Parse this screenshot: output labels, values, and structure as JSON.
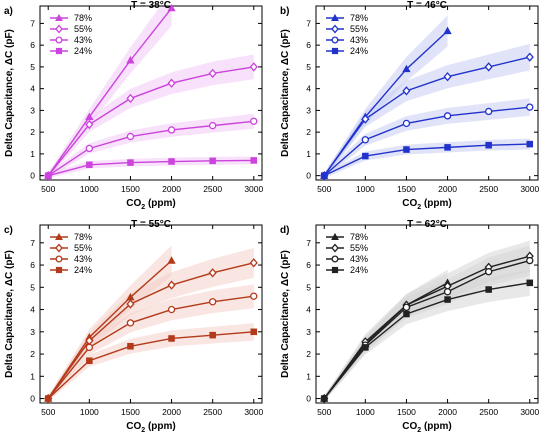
{
  "chart_data": [
    {
      "type": "line",
      "panel_label": "a)",
      "title": "T = 38°C",
      "xlabel_main": "CO",
      "xlabel_sub": "2",
      "xlabel_rest": " (ppm)",
      "ylabel": "Delta Capacitance, ΔC (pF)",
      "xlim": [
        400,
        3100
      ],
      "ylim": [
        -0.2,
        7.8
      ],
      "xticks": [
        500,
        1000,
        1500,
        2000,
        2500,
        3000
      ],
      "yticks": [
        0,
        1,
        2,
        3,
        4,
        5,
        6,
        7
      ],
      "color": "#cc44dd",
      "band_color": "#f3c8f6",
      "legend_position": "top-left",
      "series": [
        {
          "name": "78%",
          "marker": "triangle",
          "x": [
            500,
            1000,
            1500,
            2000
          ],
          "values": [
            0,
            2.7,
            5.3,
            7.7
          ]
        },
        {
          "name": "55%",
          "marker": "diamond",
          "x": [
            500,
            1000,
            1500,
            2000,
            2500,
            3000
          ],
          "values": [
            0,
            2.35,
            3.55,
            4.25,
            4.7,
            5.0
          ]
        },
        {
          "name": "43%",
          "marker": "circle",
          "x": [
            500,
            1000,
            1500,
            2000,
            2500,
            3000
          ],
          "values": [
            0,
            1.25,
            1.8,
            2.1,
            2.3,
            2.5
          ]
        },
        {
          "name": "24%",
          "marker": "square",
          "x": [
            500,
            1000,
            1500,
            2000,
            2500,
            3000
          ],
          "values": [
            0,
            0.5,
            0.6,
            0.65,
            0.68,
            0.7
          ]
        }
      ]
    },
    {
      "type": "line",
      "panel_label": "b)",
      "title": "T = 46°C",
      "xlabel_main": "CO",
      "xlabel_sub": "2",
      "xlabel_rest": " (ppm)",
      "ylabel": "Delta Capacitance, ΔC (pF)",
      "xlim": [
        400,
        3100
      ],
      "ylim": [
        -0.2,
        7.8
      ],
      "xticks": [
        500,
        1000,
        1500,
        2000,
        2500,
        3000
      ],
      "yticks": [
        0,
        1,
        2,
        3,
        4,
        5,
        6,
        7
      ],
      "color": "#2233cc",
      "band_color": "#c9cdf3",
      "legend_position": "top-left",
      "series": [
        {
          "name": "78%",
          "marker": "triangle",
          "x": [
            500,
            1000,
            1500,
            2000
          ],
          "values": [
            0,
            2.7,
            4.9,
            6.65
          ]
        },
        {
          "name": "55%",
          "marker": "diamond",
          "x": [
            500,
            1000,
            1500,
            2000,
            2500,
            3000
          ],
          "values": [
            0,
            2.6,
            3.9,
            4.55,
            5.0,
            5.45
          ]
        },
        {
          "name": "43%",
          "marker": "circle",
          "x": [
            500,
            1000,
            1500,
            2000,
            2500,
            3000
          ],
          "values": [
            0,
            1.65,
            2.4,
            2.75,
            2.95,
            3.15
          ]
        },
        {
          "name": "24%",
          "marker": "square",
          "x": [
            500,
            1000,
            1500,
            2000,
            2500,
            3000
          ],
          "values": [
            0,
            0.9,
            1.2,
            1.3,
            1.4,
            1.45
          ]
        }
      ]
    },
    {
      "type": "line",
      "panel_label": "c)",
      "title": "T = 55°C",
      "xlabel_main": "CO",
      "xlabel_sub": "2",
      "xlabel_rest": " (ppm)",
      "ylabel": "Delta Capacitance, ΔC (pF)",
      "xlim": [
        400,
        3100
      ],
      "ylim": [
        -0.2,
        7.8
      ],
      "xticks": [
        500,
        1000,
        1500,
        2000,
        2500,
        3000
      ],
      "yticks": [
        0,
        1,
        2,
        3,
        4,
        5,
        6,
        7
      ],
      "color": "#b33a1a",
      "band_color": "#f4cfc9",
      "legend_position": "top-left",
      "series": [
        {
          "name": "78%",
          "marker": "triangle",
          "x": [
            500,
            1000,
            1500,
            2000
          ],
          "values": [
            0,
            2.75,
            4.55,
            6.2
          ]
        },
        {
          "name": "55%",
          "marker": "diamond",
          "x": [
            500,
            1000,
            1500,
            2000,
            2500,
            3000
          ],
          "values": [
            0,
            2.6,
            4.25,
            5.1,
            5.65,
            6.1
          ]
        },
        {
          "name": "43%",
          "marker": "circle",
          "x": [
            500,
            1000,
            1500,
            2000,
            2500,
            3000
          ],
          "values": [
            0,
            2.3,
            3.4,
            4.0,
            4.35,
            4.6
          ]
        },
        {
          "name": "24%",
          "marker": "square",
          "x": [
            500,
            1000,
            1500,
            2000,
            2500,
            3000
          ],
          "values": [
            0,
            1.7,
            2.35,
            2.7,
            2.85,
            3.0
          ]
        }
      ]
    },
    {
      "type": "line",
      "panel_label": "d)",
      "title": "T = 62°C",
      "xlabel_main": "CO",
      "xlabel_sub": "2",
      "xlabel_rest": " (ppm)",
      "ylabel": "Delta Capacitance, ΔC (pF)",
      "xlim": [
        400,
        3100
      ],
      "ylim": [
        -0.2,
        7.8
      ],
      "xticks": [
        500,
        1000,
        1500,
        2000,
        2500,
        3000
      ],
      "yticks": [
        0,
        1,
        2,
        3,
        4,
        5,
        6,
        7
      ],
      "color": "#222222",
      "band_color": "#d6d6d6",
      "legend_position": "top-left",
      "series": [
        {
          "name": "78%",
          "marker": "triangle",
          "x": [
            500,
            1000,
            1500,
            2000
          ],
          "values": [
            0,
            2.45,
            4.2,
            5.2
          ]
        },
        {
          "name": "55%",
          "marker": "diamond",
          "x": [
            500,
            1000,
            1500,
            2000,
            2500,
            3000
          ],
          "values": [
            0,
            2.55,
            4.2,
            5.05,
            5.9,
            6.4
          ]
        },
        {
          "name": "43%",
          "marker": "circle",
          "x": [
            500,
            1000,
            1500,
            2000,
            2500,
            3000
          ],
          "values": [
            0,
            2.4,
            4.1,
            4.8,
            5.7,
            6.2
          ]
        },
        {
          "name": "24%",
          "marker": "square",
          "x": [
            500,
            1000,
            1500,
            2000,
            2500,
            3000
          ],
          "values": [
            0,
            2.3,
            3.8,
            4.45,
            4.9,
            5.2
          ]
        }
      ]
    }
  ]
}
